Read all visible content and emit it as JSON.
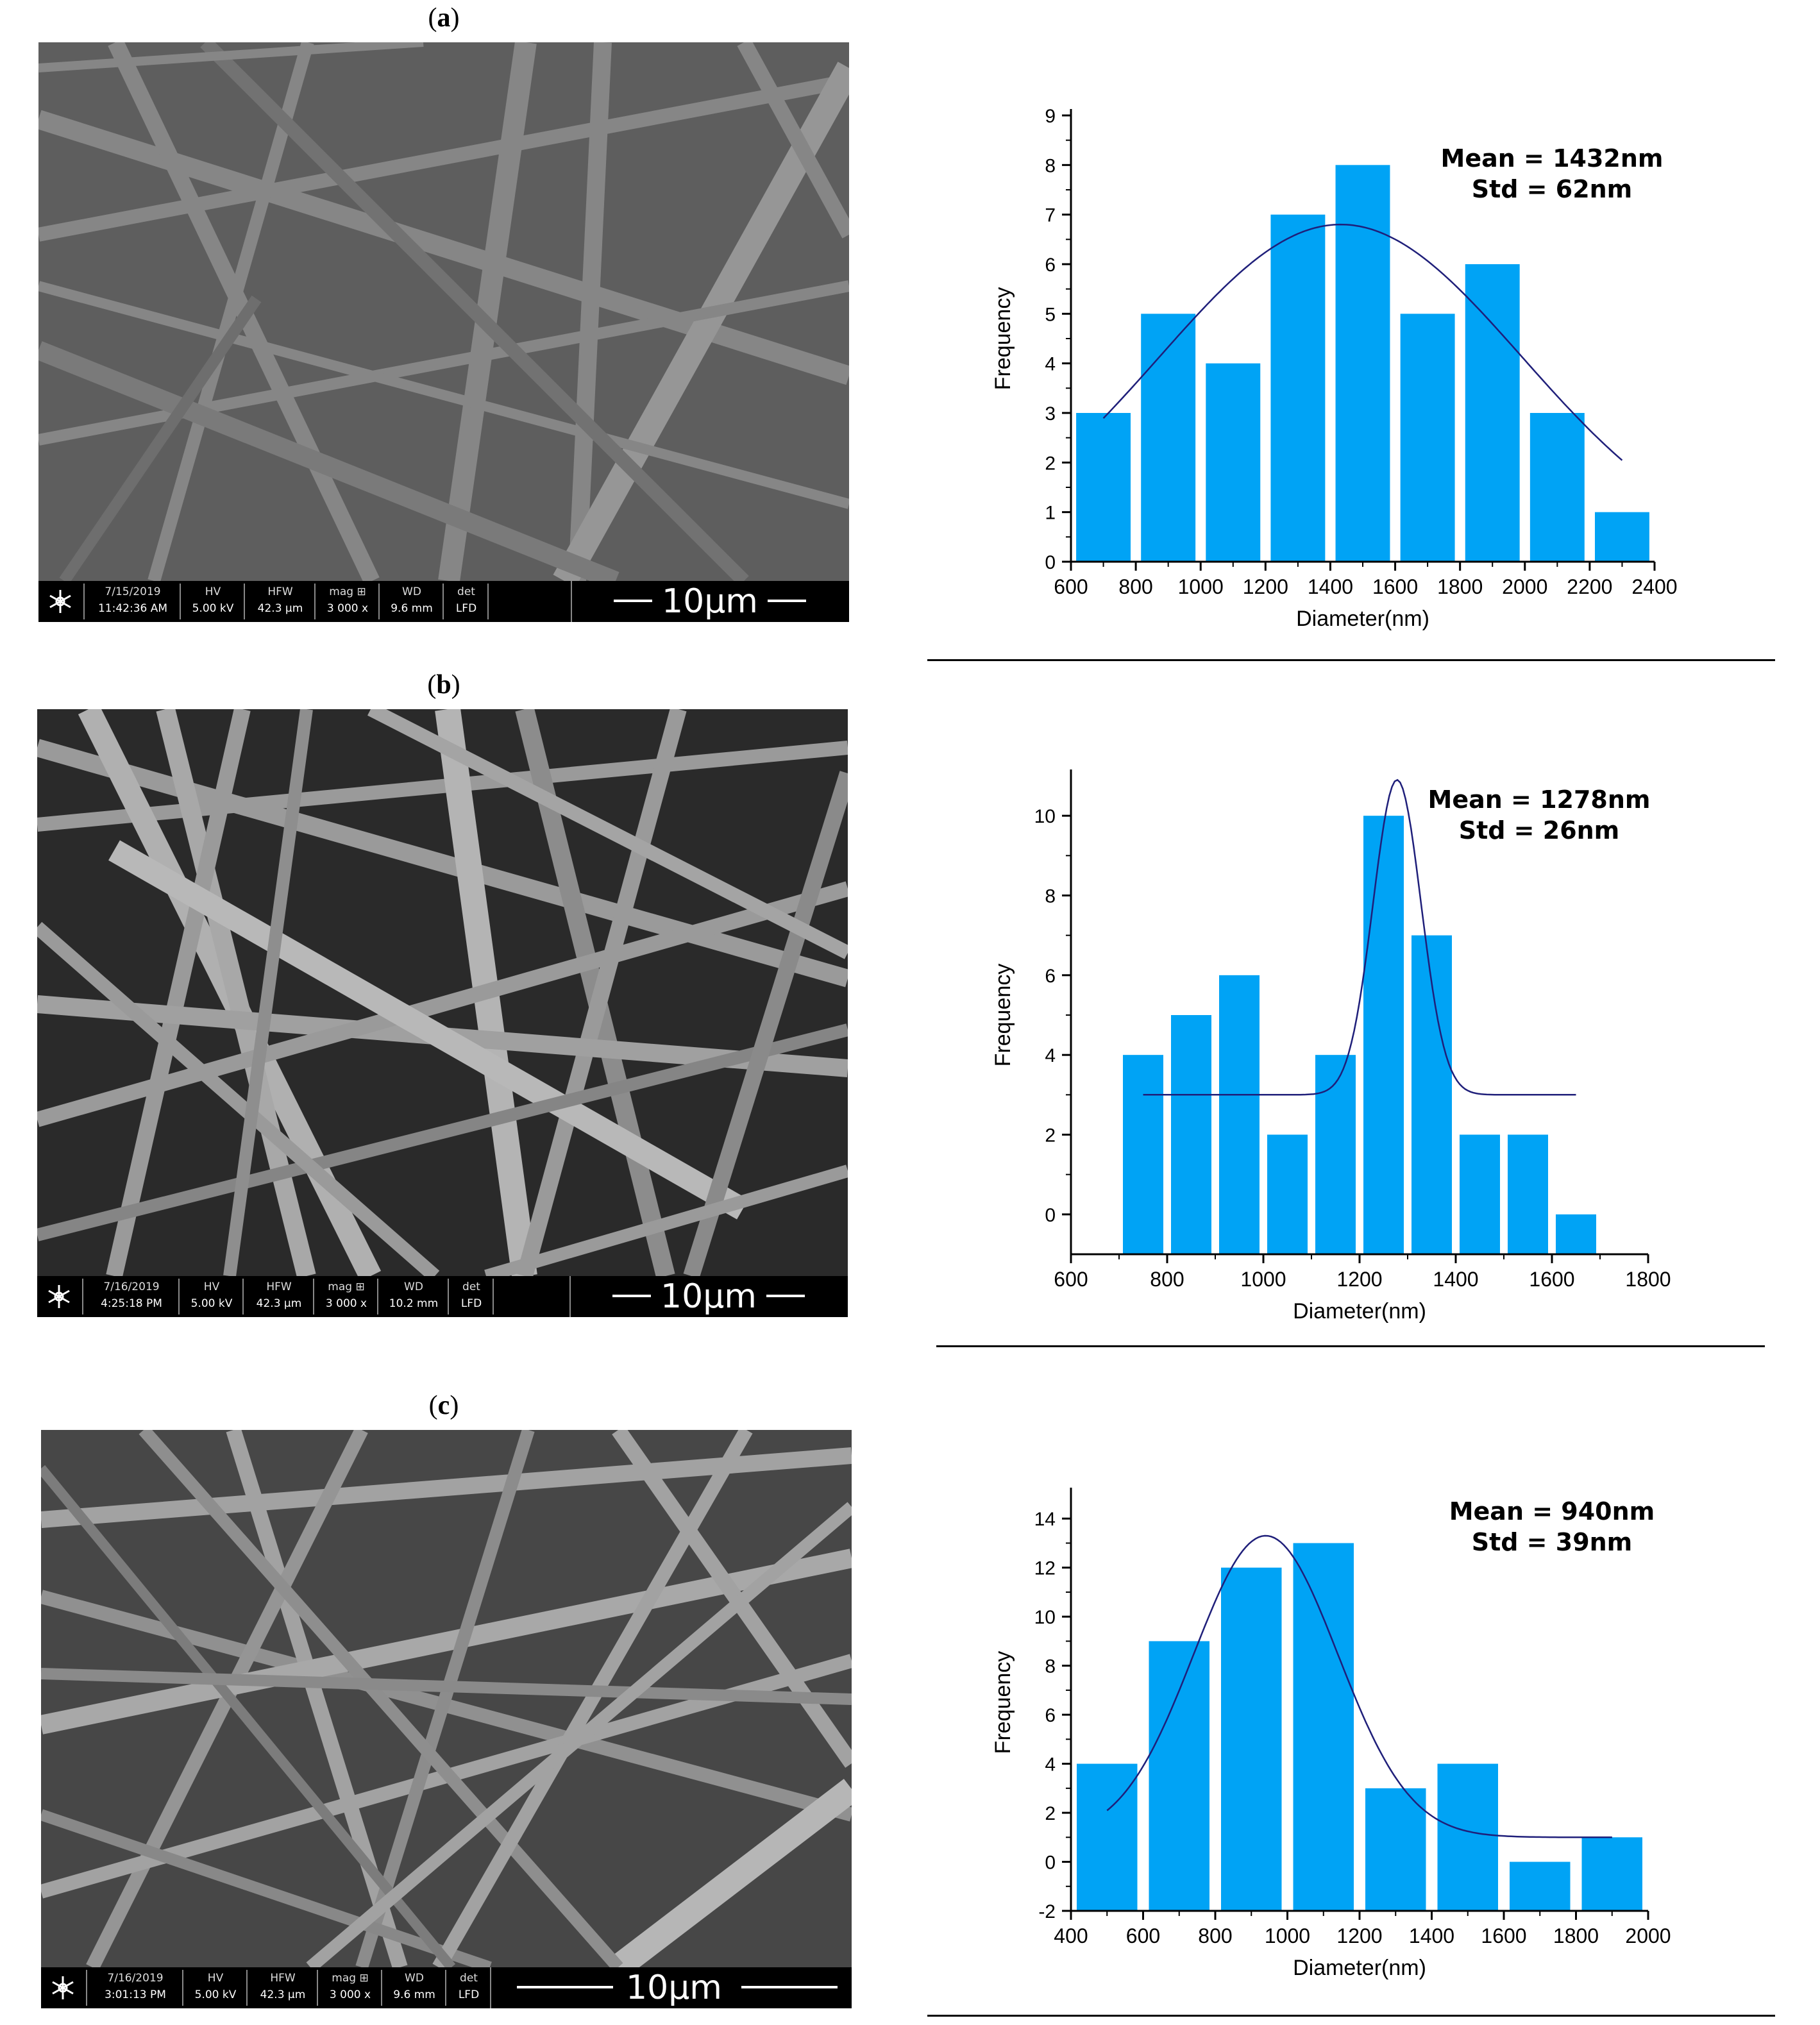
{
  "panels": [
    {
      "label": "a",
      "sem": {
        "date": "7/15/2019",
        "time": "11:42:36 AM",
        "hv_h": "HV",
        "hv": "5.00 kV",
        "hfw_h": "HFW",
        "hfw": "42.3 µm",
        "mag_h": "mag ⊞",
        "mag": "3 000 x",
        "wd_h": "WD",
        "wd": "9.6 mm",
        "det_h": "det",
        "det": "LFD",
        "scale": "10µm"
      }
    },
    {
      "label": "b",
      "sem": {
        "date": "7/16/2019",
        "time": "4:25:18 PM",
        "hv_h": "HV",
        "hv": "5.00 kV",
        "hfw_h": "HFW",
        "hfw": "42.3 µm",
        "mag_h": "mag ⊞",
        "mag": "3 000 x",
        "wd_h": "WD",
        "wd": "10.2 mm",
        "det_h": "det",
        "det": "LFD",
        "scale": "10µm"
      }
    },
    {
      "label": "c",
      "sem": {
        "date": "7/16/2019",
        "time": "3:01:13 PM",
        "hv_h": "HV",
        "hv": "5.00 kV",
        "hfw_h": "HFW",
        "hfw": "42.3 µm",
        "mag_h": "mag ⊞",
        "mag": "3 000 x",
        "wd_h": "WD",
        "wd": "9.6 mm",
        "det_h": "det",
        "det": "LFD",
        "scale": "10µm"
      }
    }
  ],
  "colors": {
    "bar": "#00a3f5",
    "fit": "#1f1f7a",
    "axis": "#000000",
    "sem_bg": "#5c5c5c"
  },
  "chart_data": [
    {
      "type": "bar",
      "xlabel": "Diameter(nm)",
      "ylabel": "Frequency",
      "xlim": [
        600,
        2400
      ],
      "ylim": [
        0,
        9
      ],
      "xticks": [
        600,
        800,
        1000,
        1200,
        1400,
        1600,
        1800,
        2000,
        2200,
        2400
      ],
      "yticks": [
        0,
        1,
        2,
        3,
        4,
        5,
        6,
        7,
        8,
        9
      ],
      "bin_width": 200,
      "bin_centers": [
        700,
        900,
        1100,
        1300,
        1500,
        1700,
        1900,
        2100,
        2300
      ],
      "values": [
        3,
        5,
        4,
        7,
        8,
        5,
        6,
        3,
        1
      ],
      "annotation": [
        "Mean = 1432nm",
        "Std = 62nm"
      ],
      "fit": {
        "type": "gaussian",
        "x_range": [
          700,
          2300
        ],
        "y0": 0,
        "amplitude": 6.8,
        "center": 1432,
        "sigma": 560
      }
    },
    {
      "type": "bar",
      "xlabel": "Diameter(nm)",
      "ylabel": "Frequency",
      "xlim": [
        600,
        1800
      ],
      "ylim": [
        -1,
        11
      ],
      "xticks": [
        600,
        800,
        1000,
        1200,
        1400,
        1600,
        1800
      ],
      "yticks": [
        0,
        2,
        4,
        6,
        8,
        10
      ],
      "bin_width": 100,
      "bin_centers": [
        750,
        850,
        950,
        1050,
        1150,
        1250,
        1350,
        1450,
        1550,
        1650
      ],
      "values": [
        4,
        5,
        6,
        2,
        4,
        10,
        7,
        2,
        2,
        0
      ],
      "annotation": [
        "Mean = 1278nm",
        "Std = 26nm"
      ],
      "fit": {
        "type": "gaussian",
        "x_range": [
          750,
          1650
        ],
        "y0": 3,
        "amplitude": 7.9,
        "center": 1278,
        "sigma": 50
      }
    },
    {
      "type": "bar",
      "xlabel": "Diameter(nm)",
      "ylabel": "Frequency",
      "xlim": [
        400,
        2000
      ],
      "ylim": [
        -2,
        15
      ],
      "xticks": [
        400,
        600,
        800,
        1000,
        1200,
        1400,
        1600,
        1800,
        2000
      ],
      "yticks": [
        -2,
        0,
        2,
        4,
        6,
        8,
        10,
        12,
        14
      ],
      "bin_width": 200,
      "bin_centers": [
        500,
        700,
        900,
        1100,
        1300,
        1500,
        1700,
        1900
      ],
      "values": [
        4,
        9,
        12,
        13,
        3,
        4,
        0,
        1
      ],
      "annotation": [
        "Mean = 940nm",
        "Std = 39nm"
      ],
      "fit": {
        "type": "gaussian",
        "x_range": [
          500,
          1900
        ],
        "y0": 1,
        "amplitude": 12.3,
        "center": 940,
        "sigma": 200
      }
    }
  ]
}
